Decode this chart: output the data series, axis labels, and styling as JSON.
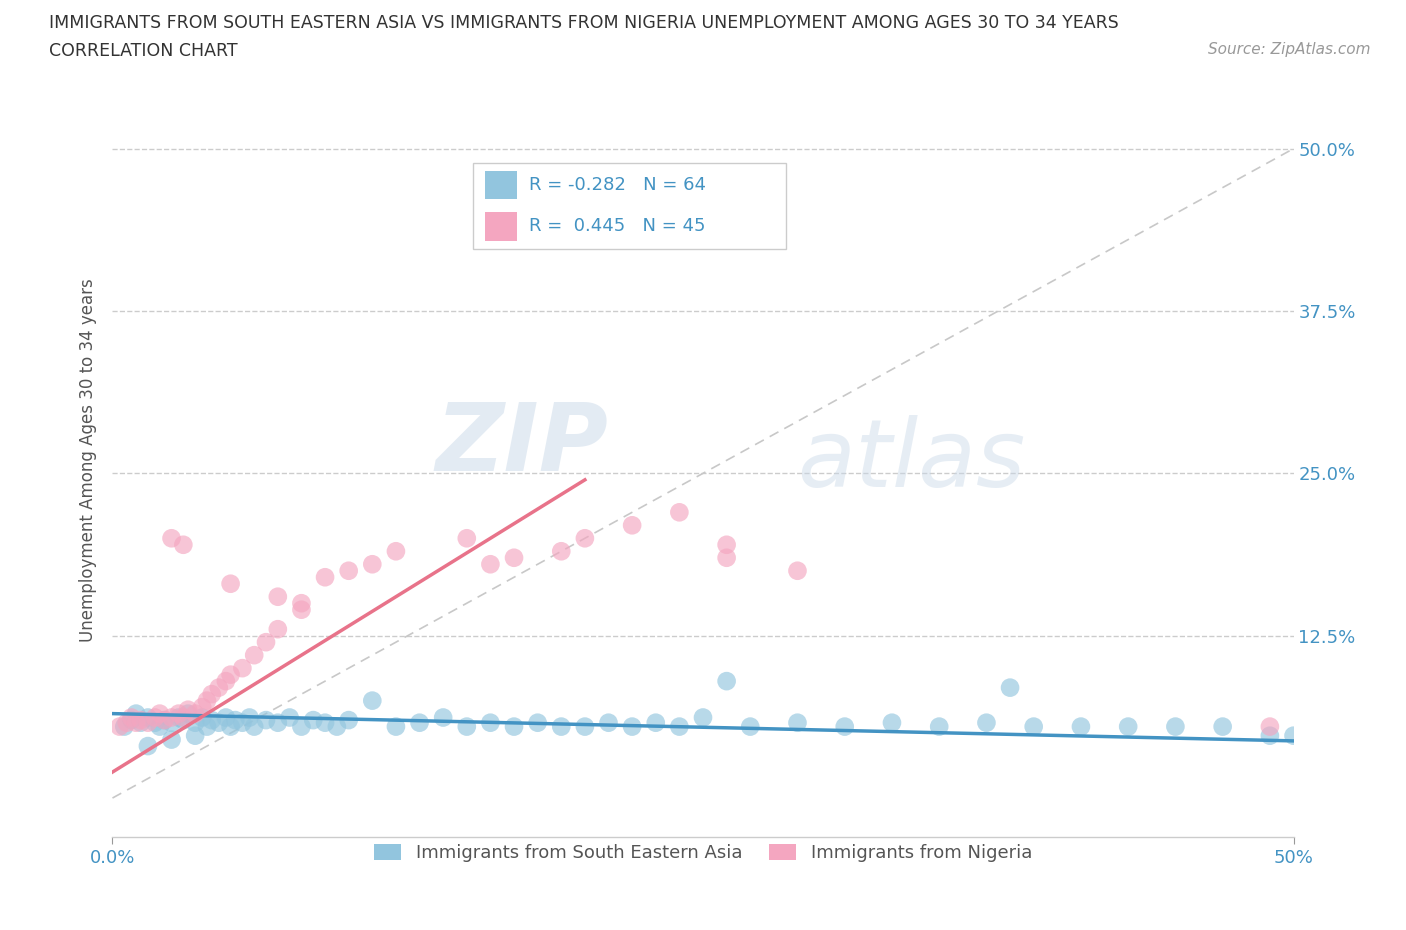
{
  "title_line1": "IMMIGRANTS FROM SOUTH EASTERN ASIA VS IMMIGRANTS FROM NIGERIA UNEMPLOYMENT AMONG AGES 30 TO 34 YEARS",
  "title_line2": "CORRELATION CHART",
  "source_text": "Source: ZipAtlas.com",
  "ylabel": "Unemployment Among Ages 30 to 34 years",
  "xmin": 0.0,
  "xmax": 0.5,
  "ymin": -0.03,
  "ymax": 0.55,
  "y_ticks": [
    0.0,
    0.125,
    0.25,
    0.375,
    0.5
  ],
  "y_tick_labels": [
    "",
    "12.5%",
    "25.0%",
    "37.5%",
    "50.0%"
  ],
  "x_ticks": [
    0.0,
    0.5
  ],
  "x_tick_labels": [
    "0.0%",
    "50%"
  ],
  "legend_label1": "Immigrants from South Eastern Asia",
  "legend_label2": "Immigrants from Nigeria",
  "r1": -0.282,
  "n1": 64,
  "r2": 0.445,
  "n2": 45,
  "color_blue": "#92C5DE",
  "color_pink": "#F4A6C0",
  "line_color_blue": "#4393C3",
  "line_color_pink": "#E8738A",
  "diag_line_color": "#C8C8C8",
  "watermark_zip": "ZIP",
  "watermark_atlas": "atlas",
  "blue_x": [
    0.005,
    0.008,
    0.01,
    0.012,
    0.015,
    0.018,
    0.02,
    0.022,
    0.025,
    0.028,
    0.03,
    0.032,
    0.035,
    0.038,
    0.04,
    0.042,
    0.045,
    0.048,
    0.05,
    0.052,
    0.055,
    0.058,
    0.06,
    0.065,
    0.07,
    0.075,
    0.08,
    0.085,
    0.09,
    0.095,
    0.1,
    0.11,
    0.12,
    0.13,
    0.14,
    0.15,
    0.16,
    0.17,
    0.18,
    0.19,
    0.2,
    0.21,
    0.22,
    0.23,
    0.24,
    0.25,
    0.27,
    0.29,
    0.31,
    0.33,
    0.35,
    0.37,
    0.39,
    0.41,
    0.43,
    0.45,
    0.47,
    0.49,
    0.5,
    0.015,
    0.025,
    0.035,
    0.26,
    0.38
  ],
  "blue_y": [
    0.055,
    0.06,
    0.065,
    0.058,
    0.062,
    0.058,
    0.055,
    0.06,
    0.058,
    0.062,
    0.06,
    0.065,
    0.058,
    0.062,
    0.055,
    0.06,
    0.058,
    0.062,
    0.055,
    0.06,
    0.058,
    0.062,
    0.055,
    0.06,
    0.058,
    0.062,
    0.055,
    0.06,
    0.058,
    0.055,
    0.06,
    0.075,
    0.055,
    0.058,
    0.062,
    0.055,
    0.058,
    0.055,
    0.058,
    0.055,
    0.055,
    0.058,
    0.055,
    0.058,
    0.055,
    0.062,
    0.055,
    0.058,
    0.055,
    0.058,
    0.055,
    0.058,
    0.055,
    0.055,
    0.055,
    0.055,
    0.055,
    0.048,
    0.048,
    0.04,
    0.045,
    0.048,
    0.09,
    0.085
  ],
  "pink_x": [
    0.003,
    0.006,
    0.008,
    0.01,
    0.012,
    0.015,
    0.018,
    0.02,
    0.022,
    0.025,
    0.028,
    0.03,
    0.032,
    0.035,
    0.038,
    0.04,
    0.042,
    0.045,
    0.048,
    0.05,
    0.055,
    0.06,
    0.065,
    0.07,
    0.08,
    0.09,
    0.1,
    0.11,
    0.12,
    0.15,
    0.16,
    0.17,
    0.19,
    0.2,
    0.22,
    0.24,
    0.26,
    0.26,
    0.29,
    0.49,
    0.025,
    0.03,
    0.05,
    0.07,
    0.08
  ],
  "pink_y": [
    0.055,
    0.058,
    0.062,
    0.058,
    0.06,
    0.058,
    0.062,
    0.065,
    0.06,
    0.062,
    0.065,
    0.062,
    0.068,
    0.065,
    0.07,
    0.075,
    0.08,
    0.085,
    0.09,
    0.095,
    0.1,
    0.11,
    0.12,
    0.13,
    0.15,
    0.17,
    0.175,
    0.18,
    0.19,
    0.2,
    0.18,
    0.185,
    0.19,
    0.2,
    0.21,
    0.22,
    0.195,
    0.185,
    0.175,
    0.055,
    0.2,
    0.195,
    0.165,
    0.155,
    0.145
  ]
}
